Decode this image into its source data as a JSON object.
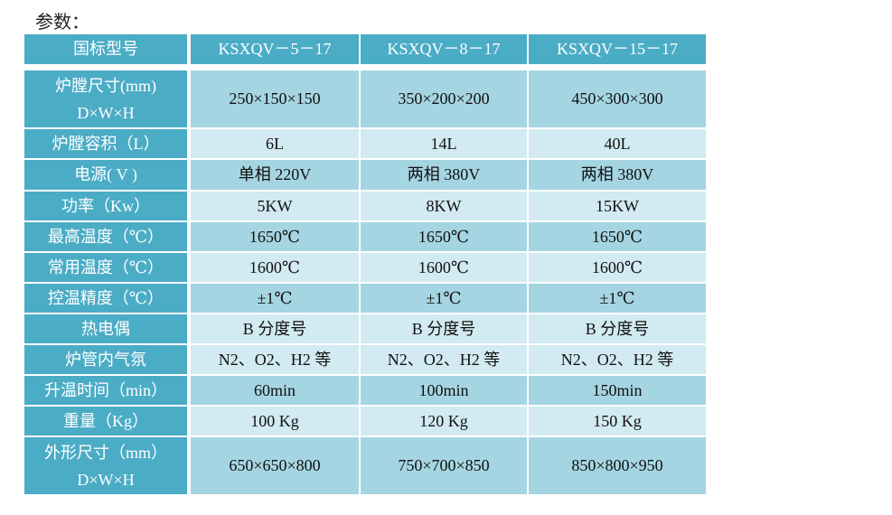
{
  "title": "参数：",
  "colors": {
    "header": "#4BACC6",
    "row_dark": "#A5D5E2",
    "row_light": "#D2EAF1"
  },
  "header": [
    "国标型号",
    "KSXQV－5－17",
    "KSXQV－8－17",
    "KSXQV－15－17"
  ],
  "rows": [
    {
      "label": [
        "炉膛尺寸(mm)",
        "D×W×H"
      ],
      "values": [
        "250×150×150",
        "350×200×200",
        "450×300×300"
      ],
      "shade": "dark"
    },
    {
      "label": [
        "炉膛容积（L）"
      ],
      "values": [
        "6L",
        "14L",
        "40L"
      ],
      "shade": "light"
    },
    {
      "label": [
        "电源( V )"
      ],
      "values": [
        "单相 220V",
        "两相 380V",
        "两相 380V"
      ],
      "shade": "dark"
    },
    {
      "label": [
        "功率（Kw）"
      ],
      "values": [
        "5KW",
        "8KW",
        "15KW"
      ],
      "shade": "light"
    },
    {
      "label": [
        "最高温度（℃）"
      ],
      "values": [
        "1650℃",
        "1650℃",
        "1650℃"
      ],
      "shade": "dark"
    },
    {
      "label": [
        "常用温度（℃）"
      ],
      "values": [
        "1600℃",
        "1600℃",
        "1600℃"
      ],
      "shade": "light"
    },
    {
      "label": [
        "控温精度（℃）"
      ],
      "values": [
        "±1℃",
        "±1℃",
        "±1℃"
      ],
      "shade": "dark"
    },
    {
      "label": [
        "热电偶"
      ],
      "values": [
        "B 分度号",
        "B 分度号",
        "B 分度号"
      ],
      "shade": "light"
    },
    {
      "label": [
        "炉管内气氛"
      ],
      "values": [
        "N2、O2、H2 等",
        "N2、O2、H2 等",
        "N2、O2、H2 等"
      ],
      "shade": "light"
    },
    {
      "label": [
        "升温时间（min）"
      ],
      "values": [
        "60min",
        "100min",
        "150min"
      ],
      "shade": "dark"
    },
    {
      "label": [
        "重量（Kg）"
      ],
      "values": [
        "100 Kg",
        "120 Kg",
        "150 Kg"
      ],
      "shade": "light"
    },
    {
      "label": [
        "外形尺寸（mm）",
        "D×W×H"
      ],
      "values": [
        "650×650×800",
        "750×700×850",
        "850×800×950"
      ],
      "shade": "dark"
    }
  ]
}
